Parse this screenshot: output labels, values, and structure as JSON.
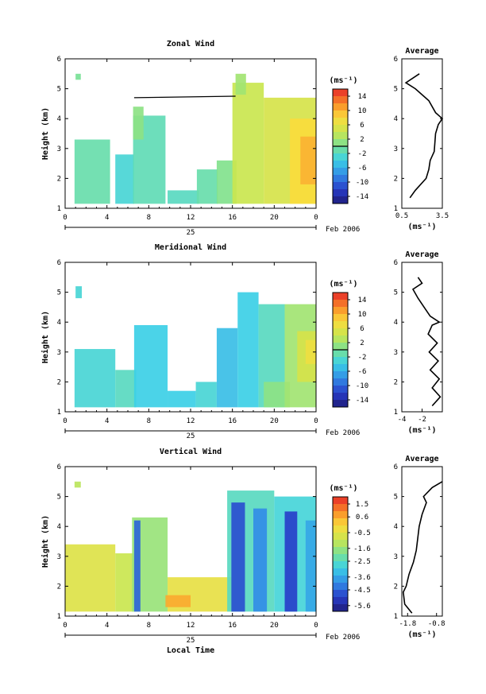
{
  "figure": {
    "date_label": "Feb 2006",
    "xlabel": "Local Time"
  },
  "chart_data": [
    {
      "type": "heatmap",
      "title": "Zonal Wind",
      "xlabel": "",
      "ylabel": "Height (km)",
      "xlim": [
        0,
        24
      ],
      "ylim": [
        1,
        6
      ],
      "x_ticks": [
        "0",
        "4",
        "8",
        "12",
        "16",
        "20",
        "0"
      ],
      "y_ticks": [
        "1",
        "2",
        "3",
        "4",
        "5",
        "6"
      ],
      "date_tick": "25",
      "colorbar": {
        "unit": "(ms⁻¹)",
        "min": -16,
        "max": 16,
        "labels": [
          "14",
          "10",
          "6",
          "2",
          "-2",
          "-6",
          "-10",
          "-14"
        ],
        "label_values": [
          14,
          10,
          6,
          2,
          -2,
          -6,
          -10,
          -14
        ],
        "marker": 0
      },
      "series": [
        {
          "x0": 0.9,
          "x1": 4.3,
          "y0": 1.15,
          "y1": 3.3,
          "value": -1
        },
        {
          "x0": 1.0,
          "x1": 1.5,
          "y0": 5.3,
          "y1": 5.5,
          "value": 0
        },
        {
          "x0": 4.8,
          "x1": 6.6,
          "y0": 1.15,
          "y1": 2.8,
          "value": -3
        },
        {
          "x0": 6.5,
          "x1": 9.6,
          "y0": 1.15,
          "y1": 4.1,
          "value": -1.5
        },
        {
          "x0": 9.8,
          "x1": 12.8,
          "y0": 1.15,
          "y1": 1.6,
          "value": -2
        },
        {
          "x0": 12.6,
          "x1": 14.6,
          "y0": 1.15,
          "y1": 2.3,
          "value": -1
        },
        {
          "x0": 14.5,
          "x1": 16.4,
          "y0": 1.15,
          "y1": 2.6,
          "value": 0.5
        },
        {
          "x0": 16.0,
          "x1": 19.0,
          "y0": 1.15,
          "y1": 5.2,
          "value": 4
        },
        {
          "x0": 16.3,
          "x1": 17.3,
          "y0": 4.8,
          "y1": 5.5,
          "value": 2
        },
        {
          "x0": 19.0,
          "x1": 24.0,
          "y0": 1.15,
          "y1": 4.7,
          "value": 5
        },
        {
          "x0": 21.5,
          "x1": 24.0,
          "y0": 1.15,
          "y1": 4.0,
          "value": 8
        },
        {
          "x0": 22.5,
          "x1": 24.0,
          "y0": 1.8,
          "y1": 3.4,
          "value": 10
        },
        {
          "x0": 6.5,
          "x1": 7.5,
          "y0": 3.3,
          "y1": 4.4,
          "value": 1
        }
      ],
      "lines": [
        {
          "x": [
            6.6,
            16.3
          ],
          "y": [
            4.7,
            4.75
          ]
        }
      ],
      "average_profile": {
        "title": "Average",
        "xlabel": "(ms⁻¹)",
        "xlim": [
          0.5,
          3.5
        ],
        "x_ticks": [
          "0.5",
          "3.5"
        ],
        "x_tick_values": [
          0.5,
          3.5
        ],
        "y": [
          1.35,
          1.6,
          2.0,
          2.3,
          2.6,
          2.9,
          3.2,
          3.5,
          3.8,
          4.0,
          4.2,
          4.6,
          5.0,
          5.2,
          5.5
        ],
        "x": [
          1.1,
          1.5,
          2.3,
          2.5,
          2.6,
          2.9,
          2.95,
          3.0,
          3.2,
          3.5,
          3.0,
          2.5,
          1.5,
          0.8,
          1.8
        ]
      }
    },
    {
      "type": "heatmap",
      "title": "Meridional Wind",
      "xlabel": "",
      "ylabel": "Height (km)",
      "xlim": [
        0,
        24
      ],
      "ylim": [
        1,
        6
      ],
      "x_ticks": [
        "0",
        "4",
        "8",
        "12",
        "16",
        "20",
        "0"
      ],
      "y_ticks": [
        "1",
        "2",
        "3",
        "4",
        "5",
        "6"
      ],
      "date_tick": "25",
      "colorbar": {
        "unit": "(ms⁻¹)",
        "min": -16,
        "max": 16,
        "labels": [
          "14",
          "10",
          "6",
          "2",
          "-2",
          "-6",
          "-10",
          "-14"
        ],
        "label_values": [
          14,
          10,
          6,
          2,
          -2,
          -6,
          -10,
          -14
        ],
        "marker": 0
      },
      "series": [
        {
          "x0": 0.9,
          "x1": 4.8,
          "y0": 1.15,
          "y1": 3.1,
          "value": -3
        },
        {
          "x0": 1.0,
          "x1": 1.6,
          "y0": 4.8,
          "y1": 5.2,
          "value": -3
        },
        {
          "x0": 4.8,
          "x1": 6.8,
          "y0": 1.15,
          "y1": 2.4,
          "value": -2
        },
        {
          "x0": 6.6,
          "x1": 9.8,
          "y0": 1.15,
          "y1": 3.9,
          "value": -4
        },
        {
          "x0": 9.8,
          "x1": 12.5,
          "y0": 1.15,
          "y1": 1.7,
          "value": -4
        },
        {
          "x0": 12.5,
          "x1": 14.5,
          "y0": 1.15,
          "y1": 2.0,
          "value": -3
        },
        {
          "x0": 14.5,
          "x1": 16.5,
          "y0": 1.15,
          "y1": 3.8,
          "value": -5
        },
        {
          "x0": 16.5,
          "x1": 18.5,
          "y0": 1.15,
          "y1": 5.0,
          "value": -4
        },
        {
          "x0": 18.5,
          "x1": 21.0,
          "y0": 1.15,
          "y1": 4.6,
          "value": -2
        },
        {
          "x0": 19.0,
          "x1": 21.5,
          "y0": 1.15,
          "y1": 2.0,
          "value": 1
        },
        {
          "x0": 21.0,
          "x1": 24.0,
          "y0": 1.15,
          "y1": 4.6,
          "value": 2
        },
        {
          "x0": 22.2,
          "x1": 24.0,
          "y0": 2.0,
          "y1": 3.7,
          "value": 5
        },
        {
          "x0": 23.0,
          "x1": 24.0,
          "y0": 2.6,
          "y1": 3.4,
          "value": 7
        }
      ],
      "average_profile": {
        "title": "Average",
        "xlabel": "(ms⁻¹)",
        "xlim": [
          -4,
          0
        ],
        "x_ticks": [
          "-4",
          "-2"
        ],
        "x_tick_values": [
          -4,
          -2
        ],
        "y": [
          1.2,
          1.5,
          1.8,
          2.1,
          2.4,
          2.7,
          3.0,
          3.3,
          3.6,
          3.9,
          4.0,
          4.2,
          4.5,
          4.8,
          5.1,
          5.3,
          5.5
        ],
        "x": [
          -1.0,
          -0.2,
          -1.0,
          -0.3,
          -1.2,
          -0.4,
          -1.3,
          -0.5,
          -1.4,
          -1.0,
          -0.3,
          -1.2,
          -1.8,
          -2.4,
          -2.9,
          -2.0,
          -2.4
        ]
      }
    },
    {
      "type": "heatmap",
      "title": "Vertical Wind",
      "xlabel": "Local Time",
      "ylabel": "Height (km)",
      "xlim": [
        0,
        24
      ],
      "ylim": [
        1,
        6
      ],
      "x_ticks": [
        "0",
        "4",
        "8",
        "12",
        "16",
        "20",
        "0"
      ],
      "y_ticks": [
        "1",
        "2",
        "3",
        "4",
        "5",
        "6"
      ],
      "date_tick": "25",
      "colorbar": {
        "unit": "(ms⁻¹)",
        "min": -6.0,
        "max": 2.0,
        "labels": [
          "1.5",
          "0.6",
          "-0.5",
          "-1.6",
          "-2.5",
          "-3.6",
          "-4.5",
          "-5.6"
        ],
        "label_values": [
          1.5,
          0.6,
          -0.5,
          -1.6,
          -2.5,
          -3.6,
          -4.5,
          -5.6
        ],
        "marker": null
      },
      "series": [
        {
          "x0": 0.0,
          "x1": 4.8,
          "y0": 1.15,
          "y1": 3.4,
          "value": -0.6
        },
        {
          "x0": 0.9,
          "x1": 1.5,
          "y0": 5.3,
          "y1": 5.5,
          "value": -1.2
        },
        {
          "x0": 4.8,
          "x1": 6.6,
          "y0": 1.15,
          "y1": 3.1,
          "value": -1.0
        },
        {
          "x0": 6.4,
          "x1": 9.8,
          "y0": 1.15,
          "y1": 4.3,
          "value": -1.6
        },
        {
          "x0": 6.6,
          "x1": 7.2,
          "y0": 1.15,
          "y1": 4.2,
          "value": -4.5
        },
        {
          "x0": 9.8,
          "x1": 16.0,
          "y0": 1.15,
          "y1": 2.3,
          "value": -0.4
        },
        {
          "x0": 9.6,
          "x1": 12.0,
          "y0": 1.3,
          "y1": 1.7,
          "value": 0.6
        },
        {
          "x0": 15.5,
          "x1": 20.0,
          "y0": 1.15,
          "y1": 5.2,
          "value": -2.5
        },
        {
          "x0": 15.9,
          "x1": 17.2,
          "y0": 1.15,
          "y1": 4.8,
          "value": -4.8
        },
        {
          "x0": 18.0,
          "x1": 19.3,
          "y0": 1.15,
          "y1": 4.6,
          "value": -4.0
        },
        {
          "x0": 20.0,
          "x1": 24.0,
          "y0": 1.15,
          "y1": 5.0,
          "value": -2.8
        },
        {
          "x0": 21.0,
          "x1": 22.2,
          "y0": 1.15,
          "y1": 4.5,
          "value": -5.0
        },
        {
          "x0": 23.0,
          "x1": 24.0,
          "y0": 1.15,
          "y1": 4.2,
          "value": -3.6
        }
      ],
      "average_profile": {
        "title": "Average",
        "xlabel": "(ms⁻¹)",
        "xlim": [
          -2.0,
          -0.6
        ],
        "x_ticks": [
          "-1.8",
          "-0.8"
        ],
        "x_tick_values": [
          -1.8,
          -0.8
        ],
        "y": [
          1.1,
          1.4,
          1.8,
          2.0,
          2.4,
          2.8,
          3.2,
          3.6,
          4.0,
          4.4,
          4.8,
          5.0,
          5.3,
          5.5
        ],
        "x": [
          -1.65,
          -1.9,
          -1.95,
          -1.85,
          -1.75,
          -1.6,
          -1.5,
          -1.45,
          -1.4,
          -1.3,
          -1.15,
          -1.25,
          -0.95,
          -0.6
        ]
      }
    }
  ]
}
